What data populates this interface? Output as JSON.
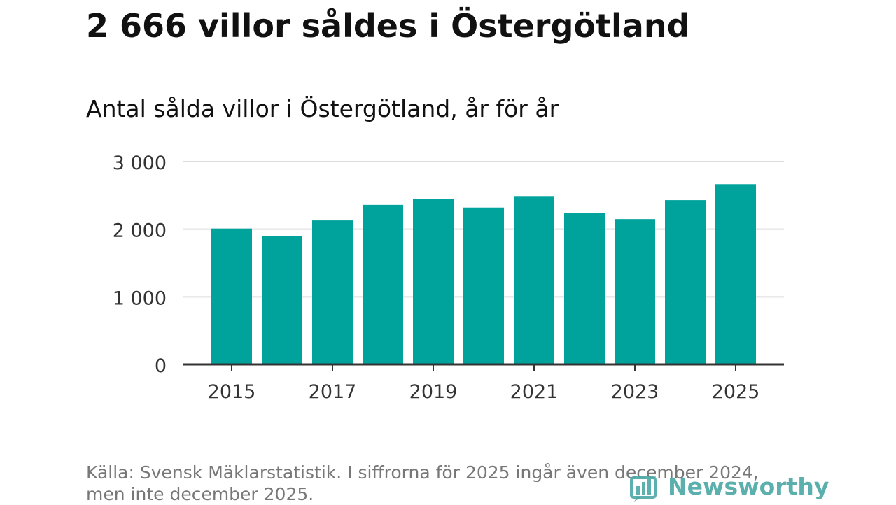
{
  "header": {
    "title": "2 666 villor såldes i Östergötland",
    "subtitle": "Antal sålda villor i Östergötland, år för år"
  },
  "chart_data": {
    "type": "bar",
    "categories": [
      "2015",
      "2016",
      "2017",
      "2018",
      "2019",
      "2020",
      "2021",
      "2022",
      "2023",
      "2024",
      "2025"
    ],
    "values": [
      2010,
      1900,
      2130,
      2360,
      2450,
      2320,
      2490,
      2240,
      2150,
      2430,
      2666
    ],
    "x_tick_labels": [
      "2015",
      "2017",
      "2019",
      "2021",
      "2023",
      "2025"
    ],
    "y_ticks": [
      0,
      1000,
      2000,
      3000
    ],
    "y_tick_labels": [
      "0",
      "1 000",
      "2 000",
      "3 000"
    ],
    "ylim": [
      0,
      3000
    ],
    "xlabel": "",
    "ylabel": "",
    "grid": true,
    "bar_color": "#00a39b"
  },
  "footer": {
    "source_line1": "Källa: Svensk Mäklarstatistik. I siffrorna för 2025 ingår även december 2024,",
    "source_line2": "men inte december 2025.",
    "logo_text": "Newsworthy",
    "logo_icon": "newsworthy-bar-icon",
    "logo_color": "#4aa7a5"
  }
}
